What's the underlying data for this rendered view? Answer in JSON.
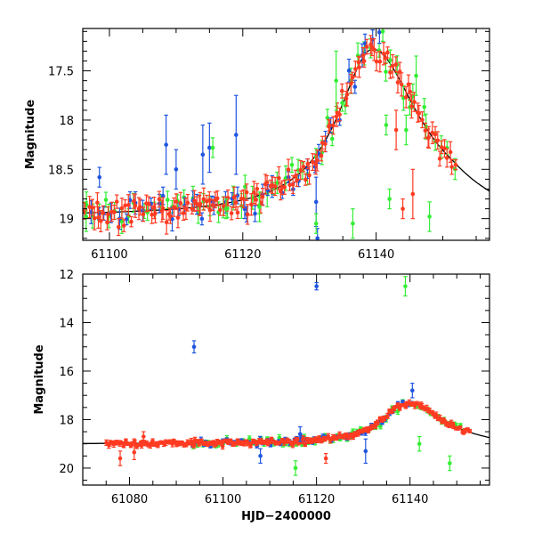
{
  "chart_data": [
    {
      "type": "scatter",
      "panel": "top",
      "title": "",
      "xlabel": "",
      "ylabel": "Magnitude",
      "xlim": [
        61096,
        61157
      ],
      "ylim": [
        19.22,
        17.07
      ],
      "y_inverted": true,
      "xticks": [
        61100,
        61120,
        61140
      ],
      "xtick_labels": [
        "61100",
        "61120",
        "61140"
      ],
      "yticks": [
        17.5,
        18,
        18.5,
        19
      ],
      "ytick_labels": [
        "17.5",
        "18",
        "18.5",
        "19"
      ],
      "series": [
        {
          "name": "red",
          "color": "#ff3b22",
          "x_range": [
            61096,
            61152
          ],
          "count": 150
        },
        {
          "name": "blue",
          "color": "#1f55e0",
          "x_range": [
            61097,
            61141
          ],
          "count": 45
        },
        {
          "name": "green",
          "color": "#33ee33",
          "x_range": [
            61096,
            61152
          ],
          "count": 60
        }
      ],
      "model_curve": {
        "color": "#000000",
        "baseline": 18.98,
        "peak_x": 61139.5,
        "peak_mag": 17.28,
        "x_range": [
          61096,
          61157
        ]
      },
      "outliers": [
        {
          "series": "blue",
          "x": 61108.5,
          "y": 18.25,
          "err": 0.3
        },
        {
          "series": "blue",
          "x": 61110,
          "y": 18.5,
          "err": 0.2
        },
        {
          "series": "blue",
          "x": 61114,
          "y": 18.35,
          "err": 0.3
        },
        {
          "series": "blue",
          "x": 61119,
          "y": 18.15,
          "err": 0.4
        },
        {
          "series": "blue",
          "x": 61115,
          "y": 18.28,
          "err": 0.25
        },
        {
          "series": "blue",
          "x": 61098.5,
          "y": 18.58,
          "err": 0.1
        },
        {
          "series": "blue",
          "x": 61131,
          "y": 18.83,
          "err": 0.25
        },
        {
          "series": "blue",
          "x": 61131.2,
          "y": 19.2,
          "err": 0.1
        },
        {
          "series": "green",
          "x": 61115.5,
          "y": 18.28,
          "err": 0.1
        },
        {
          "series": "green",
          "x": 61134,
          "y": 17.6,
          "err": 0.3
        },
        {
          "series": "green",
          "x": 61131,
          "y": 19.05,
          "err": 0.1
        },
        {
          "series": "green",
          "x": 61136.5,
          "y": 19.05,
          "err": 0.15
        },
        {
          "series": "green",
          "x": 61141,
          "y": 17.1,
          "err": 0.1
        },
        {
          "series": "green",
          "x": 61142,
          "y": 18.8,
          "err": 0.1
        },
        {
          "series": "green",
          "x": 61146,
          "y": 17.55,
          "err": 0.2
        },
        {
          "series": "green",
          "x": 61148,
          "y": 18.98,
          "err": 0.15
        },
        {
          "series": "green",
          "x": 61141.5,
          "y": 18.05,
          "err": 0.1
        },
        {
          "series": "green",
          "x": 61096.5,
          "y": 18.98,
          "err": 0.15
        },
        {
          "series": "green",
          "x": 61117.5,
          "y": 18.9,
          "err": 0.1
        },
        {
          "series": "green",
          "x": 61122.5,
          "y": 18.88,
          "err": 0.15
        },
        {
          "series": "green",
          "x": 61144.5,
          "y": 18.1,
          "err": 0.15
        },
        {
          "series": "red",
          "x": 61144,
          "y": 18.9,
          "err": 0.1
        },
        {
          "series": "red",
          "x": 61145.5,
          "y": 18.75,
          "err": 0.25
        },
        {
          "series": "red",
          "x": 61143,
          "y": 18.1,
          "err": 0.2
        }
      ]
    },
    {
      "type": "scatter",
      "panel": "bottom",
      "title": "",
      "xlabel": "HJD−2400000",
      "ylabel": "Magnitude",
      "xlim": [
        61070,
        61157
      ],
      "ylim": [
        20.7,
        12
      ],
      "y_inverted": true,
      "xticks": [
        61080,
        61100,
        61120,
        61140
      ],
      "xtick_labels": [
        "61080",
        "61100",
        "61120",
        "61140"
      ],
      "yticks": [
        12,
        14,
        16,
        18,
        20
      ],
      "ytick_labels": [
        "12",
        "14",
        "16",
        "18",
        "20"
      ],
      "series": [
        {
          "name": "red",
          "color": "#ff3b22",
          "x_range": [
            61075,
            61153
          ],
          "count": 230
        },
        {
          "name": "blue",
          "color": "#1f55e0",
          "x_range": [
            61093,
            61141
          ],
          "count": 60
        },
        {
          "name": "green",
          "color": "#33ee33",
          "x_range": [
            61093,
            61152
          ],
          "count": 80
        }
      ],
      "model_curve": {
        "color": "#000000",
        "baseline": 19.0,
        "peak_x": 61139.5,
        "peak_mag": 17.3,
        "x_range": [
          61070,
          61157
        ]
      },
      "outliers": [
        {
          "series": "blue",
          "x": 61093.8,
          "y": 15.0,
          "err": 0.25
        },
        {
          "series": "blue",
          "x": 61120,
          "y": 12.5,
          "err": 0.15
        },
        {
          "series": "green",
          "x": 61139,
          "y": 12.5,
          "err": 0.4
        },
        {
          "series": "blue",
          "x": 61140.5,
          "y": 16.8,
          "err": 0.3
        },
        {
          "series": "blue",
          "x": 61130.5,
          "y": 19.3,
          "err": 0.5
        },
        {
          "series": "blue",
          "x": 61116.5,
          "y": 18.6,
          "err": 0.3
        },
        {
          "series": "blue",
          "x": 61108,
          "y": 19.5,
          "err": 0.3
        },
        {
          "series": "green",
          "x": 61115.5,
          "y": 20.0,
          "err": 0.3
        },
        {
          "series": "green",
          "x": 61148.5,
          "y": 19.8,
          "err": 0.3
        },
        {
          "series": "green",
          "x": 61142,
          "y": 19.0,
          "err": 0.3
        },
        {
          "series": "red",
          "x": 61122,
          "y": 19.6,
          "err": 0.2
        },
        {
          "series": "red",
          "x": 61078,
          "y": 19.6,
          "err": 0.3
        },
        {
          "series": "red",
          "x": 61081,
          "y": 19.35,
          "err": 0.3
        },
        {
          "series": "red",
          "x": 61083,
          "y": 18.7,
          "err": 0.2
        }
      ]
    }
  ]
}
